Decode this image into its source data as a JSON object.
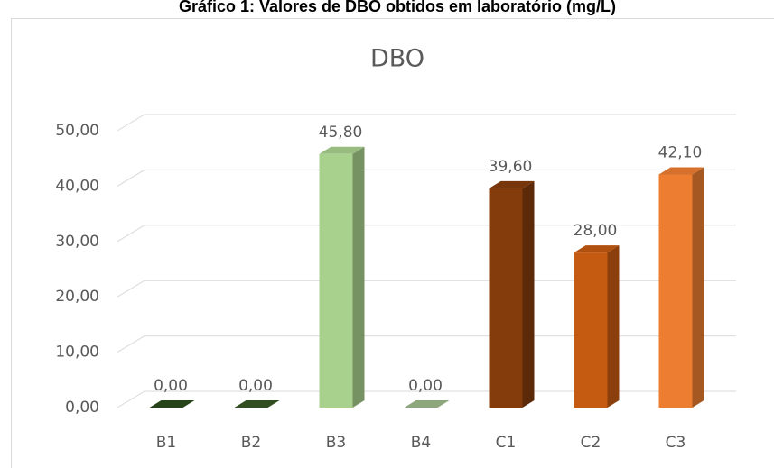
{
  "chart_data": {
    "type": "bar3d",
    "heading": "Gráfico 1: Valores de DBO obtidos em laboratório (mg/L)",
    "title": "DBO",
    "categories": [
      "B1",
      "B2",
      "B3",
      "B4",
      "C1",
      "C2",
      "C3"
    ],
    "values": [
      0,
      0,
      45.8,
      0,
      39.6,
      28,
      42.1
    ],
    "value_labels": [
      "0,00",
      "0,00",
      "45,80",
      "0,00",
      "39,60",
      "28,00",
      "42,10"
    ],
    "colors": [
      "#2b4a1c",
      "#375623",
      "#a9d18e",
      "#9db88a",
      "#843c0c",
      "#c55a11",
      "#ed7d31"
    ],
    "ylim": [
      0,
      50
    ],
    "yticks": [
      {
        "value": 0,
        "label": "0,00"
      },
      {
        "value": 10,
        "label": "10,00"
      },
      {
        "value": 20,
        "label": "20,00"
      },
      {
        "value": 30,
        "label": "30,00"
      },
      {
        "value": 40,
        "label": "40,00"
      },
      {
        "value": 50,
        "label": "50,00"
      }
    ],
    "grid": true
  }
}
